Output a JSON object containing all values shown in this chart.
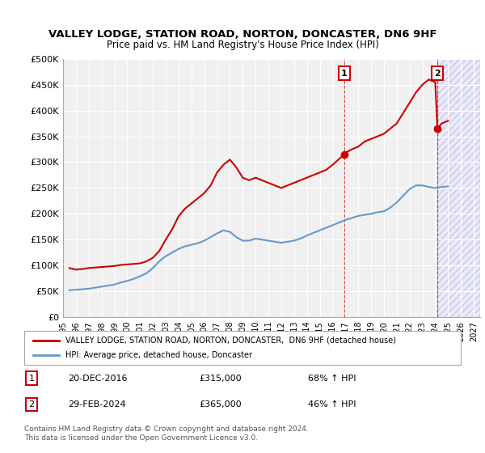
{
  "title": "VALLEY LODGE, STATION ROAD, NORTON, DONCASTER, DN6 9HF",
  "subtitle": "Price paid vs. HM Land Registry's House Price Index (HPI)",
  "ylabel_ticks": [
    "£0",
    "£50K",
    "£100K",
    "£150K",
    "£200K",
    "£250K",
    "£300K",
    "£350K",
    "£400K",
    "£450K",
    "£500K"
  ],
  "ytick_values": [
    0,
    50000,
    100000,
    150000,
    200000,
    250000,
    300000,
    350000,
    400000,
    450000,
    500000
  ],
  "ylim": [
    0,
    500000
  ],
  "xlim_start": 1995.0,
  "xlim_end": 2027.5,
  "xtick_years": [
    1995,
    1996,
    1997,
    1998,
    1999,
    2000,
    2001,
    2002,
    2003,
    2004,
    2005,
    2006,
    2007,
    2008,
    2009,
    2010,
    2011,
    2012,
    2013,
    2014,
    2015,
    2016,
    2017,
    2018,
    2019,
    2020,
    2021,
    2022,
    2023,
    2024,
    2025,
    2026,
    2027
  ],
  "red_line_color": "#cc0000",
  "blue_line_color": "#6699cc",
  "red_line_data": [
    [
      1995.5,
      95000
    ],
    [
      1996.0,
      92000
    ],
    [
      1996.5,
      93000
    ],
    [
      1997.0,
      95000
    ],
    [
      1997.5,
      96000
    ],
    [
      1998.0,
      97000
    ],
    [
      1998.5,
      98000
    ],
    [
      1999.0,
      99000
    ],
    [
      1999.5,
      101000
    ],
    [
      2000.0,
      102000
    ],
    [
      2000.5,
      103000
    ],
    [
      2001.0,
      104000
    ],
    [
      2001.5,
      108000
    ],
    [
      2002.0,
      115000
    ],
    [
      2002.5,
      128000
    ],
    [
      2003.0,
      150000
    ],
    [
      2003.5,
      170000
    ],
    [
      2004.0,
      195000
    ],
    [
      2004.5,
      210000
    ],
    [
      2005.0,
      220000
    ],
    [
      2005.5,
      230000
    ],
    [
      2006.0,
      240000
    ],
    [
      2006.5,
      255000
    ],
    [
      2007.0,
      280000
    ],
    [
      2007.5,
      295000
    ],
    [
      2008.0,
      305000
    ],
    [
      2008.5,
      290000
    ],
    [
      2009.0,
      270000
    ],
    [
      2009.5,
      265000
    ],
    [
      2010.0,
      270000
    ],
    [
      2010.5,
      265000
    ],
    [
      2011.0,
      260000
    ],
    [
      2011.5,
      255000
    ],
    [
      2012.0,
      250000
    ],
    [
      2012.5,
      255000
    ],
    [
      2013.0,
      260000
    ],
    [
      2013.5,
      265000
    ],
    [
      2014.0,
      270000
    ],
    [
      2014.5,
      275000
    ],
    [
      2015.0,
      280000
    ],
    [
      2015.5,
      285000
    ],
    [
      2016.0,
      295000
    ],
    [
      2016.917,
      315000
    ],
    [
      2017.0,
      318000
    ],
    [
      2017.5,
      325000
    ],
    [
      2018.0,
      330000
    ],
    [
      2018.5,
      340000
    ],
    [
      2019.0,
      345000
    ],
    [
      2019.5,
      350000
    ],
    [
      2020.0,
      355000
    ],
    [
      2020.5,
      365000
    ],
    [
      2021.0,
      375000
    ],
    [
      2021.5,
      395000
    ],
    [
      2022.0,
      415000
    ],
    [
      2022.5,
      435000
    ],
    [
      2023.0,
      450000
    ],
    [
      2023.5,
      460000
    ],
    [
      2024.0,
      455000
    ],
    [
      2024.167,
      365000
    ],
    [
      2024.5,
      375000
    ],
    [
      2025.0,
      380000
    ]
  ],
  "blue_line_data": [
    [
      1995.5,
      52000
    ],
    [
      1996.0,
      53000
    ],
    [
      1996.5,
      54000
    ],
    [
      1997.0,
      55000
    ],
    [
      1997.5,
      57000
    ],
    [
      1998.0,
      59000
    ],
    [
      1998.5,
      61000
    ],
    [
      1999.0,
      63000
    ],
    [
      1999.5,
      67000
    ],
    [
      2000.0,
      70000
    ],
    [
      2000.5,
      74000
    ],
    [
      2001.0,
      79000
    ],
    [
      2001.5,
      85000
    ],
    [
      2002.0,
      95000
    ],
    [
      2002.5,
      108000
    ],
    [
      2003.0,
      118000
    ],
    [
      2003.5,
      125000
    ],
    [
      2004.0,
      132000
    ],
    [
      2004.5,
      137000
    ],
    [
      2005.0,
      140000
    ],
    [
      2005.5,
      143000
    ],
    [
      2006.0,
      148000
    ],
    [
      2006.5,
      155000
    ],
    [
      2007.0,
      162000
    ],
    [
      2007.5,
      168000
    ],
    [
      2008.0,
      165000
    ],
    [
      2008.5,
      155000
    ],
    [
      2009.0,
      148000
    ],
    [
      2009.5,
      148000
    ],
    [
      2010.0,
      152000
    ],
    [
      2010.5,
      150000
    ],
    [
      2011.0,
      148000
    ],
    [
      2011.5,
      146000
    ],
    [
      2012.0,
      144000
    ],
    [
      2012.5,
      146000
    ],
    [
      2013.0,
      148000
    ],
    [
      2013.5,
      152000
    ],
    [
      2014.0,
      158000
    ],
    [
      2014.5,
      163000
    ],
    [
      2015.0,
      168000
    ],
    [
      2015.5,
      173000
    ],
    [
      2016.0,
      178000
    ],
    [
      2016.5,
      183000
    ],
    [
      2017.0,
      188000
    ],
    [
      2017.5,
      192000
    ],
    [
      2018.0,
      196000
    ],
    [
      2018.5,
      198000
    ],
    [
      2019.0,
      200000
    ],
    [
      2019.5,
      203000
    ],
    [
      2020.0,
      205000
    ],
    [
      2020.5,
      212000
    ],
    [
      2021.0,
      222000
    ],
    [
      2021.5,
      235000
    ],
    [
      2022.0,
      248000
    ],
    [
      2022.5,
      255000
    ],
    [
      2023.0,
      255000
    ],
    [
      2023.5,
      252000
    ],
    [
      2024.0,
      250000
    ],
    [
      2024.5,
      252000
    ],
    [
      2025.0,
      253000
    ]
  ],
  "transaction1_x": 2016.917,
  "transaction1_y": 315000,
  "transaction1_label": "1",
  "transaction1_date": "20-DEC-2016",
  "transaction1_price": "£315,000",
  "transaction1_hpi": "68% ↑ HPI",
  "transaction2_x": 2024.167,
  "transaction2_y": 365000,
  "transaction2_label": "2",
  "transaction2_date": "29-FEB-2024",
  "transaction2_price": "£365,000",
  "transaction2_hpi": "46% ↑ HPI",
  "legend_red_label": "VALLEY LODGE, STATION ROAD, NORTON, DONCASTER,  DN6 9HF (detached house)",
  "legend_blue_label": "HPI: Average price, detached house, Doncaster",
  "copyright_text": "Contains HM Land Registry data © Crown copyright and database right 2024.\nThis data is licensed under the Open Government Licence v3.0.",
  "background_color": "#ffffff",
  "plot_bg_color": "#f0f0f0",
  "grid_color": "#ffffff",
  "hatched_region_color": "#ddddff",
  "hatched_region_start": 2024.167,
  "hatched_region_end": 2027.5
}
